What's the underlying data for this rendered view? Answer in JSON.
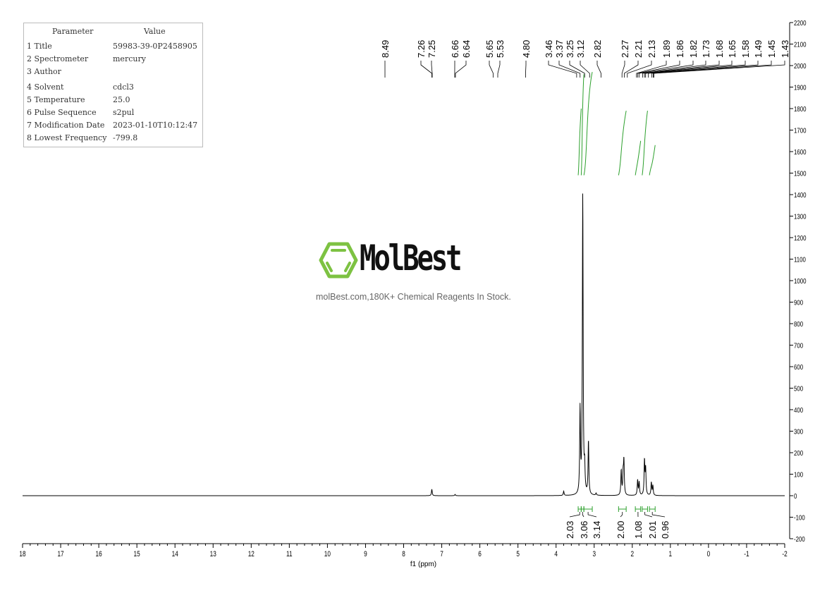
{
  "parameters": {
    "header": {
      "param": "Parameter",
      "value": "Value"
    },
    "rows": [
      {
        "key": "1 Title",
        "value": "59983-39-0P2458905"
      },
      {
        "key": "2 Spectrometer",
        "value": "mercury"
      },
      {
        "key": "3 Author",
        "value": ""
      },
      {
        "key": "4 Solvent",
        "value": "cdcl3"
      },
      {
        "key": "5 Temperature",
        "value": "25.0"
      },
      {
        "key": "6 Pulse Sequence",
        "value": "s2pul"
      },
      {
        "key": "7 Modification Date",
        "value": "2023-01-10T10:12:47"
      },
      {
        "key": "8 Lowest Frequency",
        "value": "-799.8"
      }
    ]
  },
  "watermark": {
    "brand": "MolBest",
    "tagline": "molBest.com,180K+ Chemical Reagents In Stock.",
    "color": "#7dc242"
  },
  "chart_data": {
    "type": "line",
    "xlabel": "f1 (ppm)",
    "xlim": [
      18,
      -2
    ],
    "ylim": [
      -200,
      2200
    ],
    "x_ticks": [
      18,
      17,
      16,
      15,
      14,
      13,
      12,
      11,
      10,
      9,
      8,
      7,
      6,
      5,
      4,
      3,
      2,
      1,
      0,
      -1,
      -2
    ],
    "y_ticks": [
      -200,
      -100,
      0,
      100,
      200,
      300,
      400,
      500,
      600,
      700,
      800,
      900,
      1000,
      1100,
      1200,
      1300,
      1400,
      1500,
      1600,
      1700,
      1800,
      1900,
      2000,
      2100,
      2200
    ],
    "grid": false,
    "line_color": "#000000",
    "integral_color": "#2ca02c",
    "peaks": [
      {
        "ppm": 7.26,
        "height": 30
      },
      {
        "ppm": 6.65,
        "height": 6
      },
      {
        "ppm": 3.8,
        "height": 20
      },
      {
        "ppm": 3.37,
        "height": 390
      },
      {
        "ppm": 3.3,
        "height": 1390
      },
      {
        "ppm": 3.25,
        "height": 110
      },
      {
        "ppm": 3.15,
        "height": 250
      },
      {
        "ppm": 2.95,
        "height": 10
      },
      {
        "ppm": 2.29,
        "height": 115
      },
      {
        "ppm": 2.24,
        "height": 90
      },
      {
        "ppm": 2.22,
        "height": 155
      },
      {
        "ppm": 1.86,
        "height": 70
      },
      {
        "ppm": 1.82,
        "height": 60
      },
      {
        "ppm": 1.68,
        "height": 160
      },
      {
        "ppm": 1.65,
        "height": 120
      },
      {
        "ppm": 1.5,
        "height": 60
      },
      {
        "ppm": 1.46,
        "height": 45
      }
    ],
    "peak_labels": [
      "8.49",
      "7.26",
      "7.25",
      "6.66",
      "6.64",
      "5.65",
      "5.53",
      "4.80",
      "3.46",
      "3.37",
      "3.25",
      "3.12",
      "2.82",
      "2.27",
      "2.21",
      "2.13",
      "1.89",
      "1.86",
      "1.82",
      "1.73",
      "1.68",
      "1.65",
      "1.58",
      "1.49",
      "1.45",
      "1.43"
    ],
    "integrals": [
      {
        "from": 3.42,
        "to": 3.34,
        "value": "2.03"
      },
      {
        "from": 3.34,
        "to": 3.27,
        "value": "3.06"
      },
      {
        "from": 3.27,
        "to": 3.05,
        "value": "3.14"
      },
      {
        "from": 2.36,
        "to": 2.16,
        "value": "2.00"
      },
      {
        "from": 1.92,
        "to": 1.78,
        "value": "1.08"
      },
      {
        "from": 1.74,
        "to": 1.6,
        "value": "2.01"
      },
      {
        "from": 1.55,
        "to": 1.4,
        "value": "0.96"
      }
    ]
  }
}
